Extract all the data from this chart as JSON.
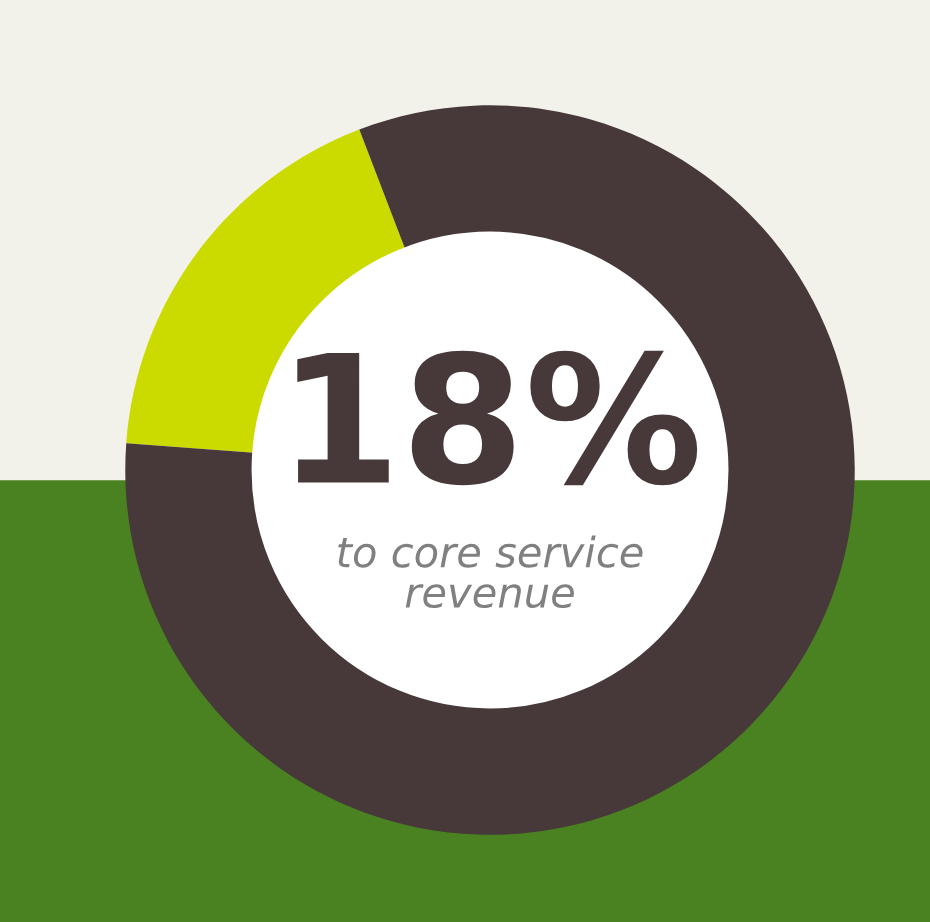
{
  "chart_data": {
    "type": "donut",
    "categories": [
      null,
      null
    ],
    "values": [
      18,
      82
    ],
    "colors": [
      "#cbdb00",
      "#47393a"
    ],
    "title": "18%",
    "annotations": [
      "to core service\nrevenue"
    ]
  }
}
